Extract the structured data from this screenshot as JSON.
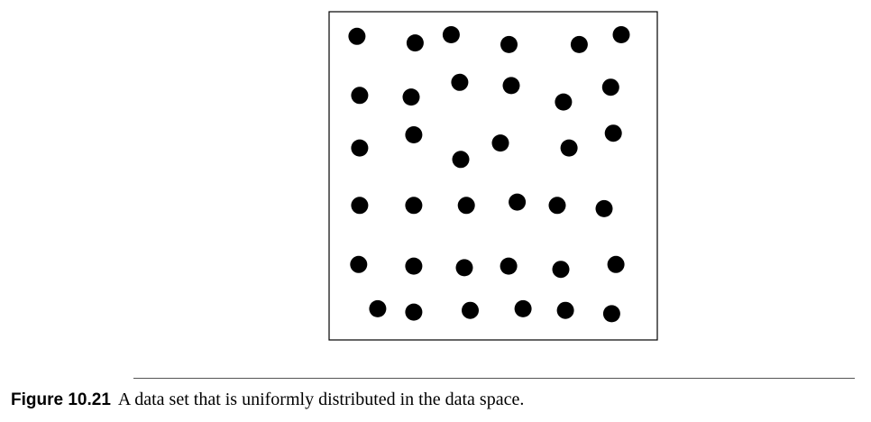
{
  "caption": {
    "label": "Figure 10.21",
    "text": "A data set that is uniformly distributed in the data space."
  },
  "colors": {
    "points": "#000000",
    "frame": "#000000",
    "rule": "#555555"
  },
  "chart_data": {
    "type": "scatter",
    "title": "",
    "xlabel": "",
    "ylabel": "",
    "xlim": [
      0,
      1
    ],
    "ylim": [
      0,
      1
    ],
    "grid": false,
    "legend": "none",
    "series": [
      {
        "points": [
          [
            0.085,
            0.925
          ],
          [
            0.262,
            0.905
          ],
          [
            0.372,
            0.93
          ],
          [
            0.548,
            0.9
          ],
          [
            0.762,
            0.9
          ],
          [
            0.89,
            0.93
          ],
          [
            0.093,
            0.745
          ],
          [
            0.25,
            0.74
          ],
          [
            0.398,
            0.785
          ],
          [
            0.555,
            0.775
          ],
          [
            0.714,
            0.725
          ],
          [
            0.858,
            0.77
          ],
          [
            0.093,
            0.585
          ],
          [
            0.258,
            0.625
          ],
          [
            0.401,
            0.55
          ],
          [
            0.522,
            0.6
          ],
          [
            0.731,
            0.585
          ],
          [
            0.866,
            0.63
          ],
          [
            0.093,
            0.41
          ],
          [
            0.258,
            0.41
          ],
          [
            0.418,
            0.41
          ],
          [
            0.573,
            0.42
          ],
          [
            0.695,
            0.41
          ],
          [
            0.838,
            0.4
          ],
          [
            0.09,
            0.23
          ],
          [
            0.258,
            0.225
          ],
          [
            0.412,
            0.22
          ],
          [
            0.547,
            0.225
          ],
          [
            0.706,
            0.215
          ],
          [
            0.874,
            0.23
          ],
          [
            0.148,
            0.095
          ],
          [
            0.258,
            0.085
          ],
          [
            0.43,
            0.09
          ],
          [
            0.591,
            0.095
          ],
          [
            0.72,
            0.09
          ],
          [
            0.861,
            0.08
          ]
        ]
      }
    ]
  }
}
